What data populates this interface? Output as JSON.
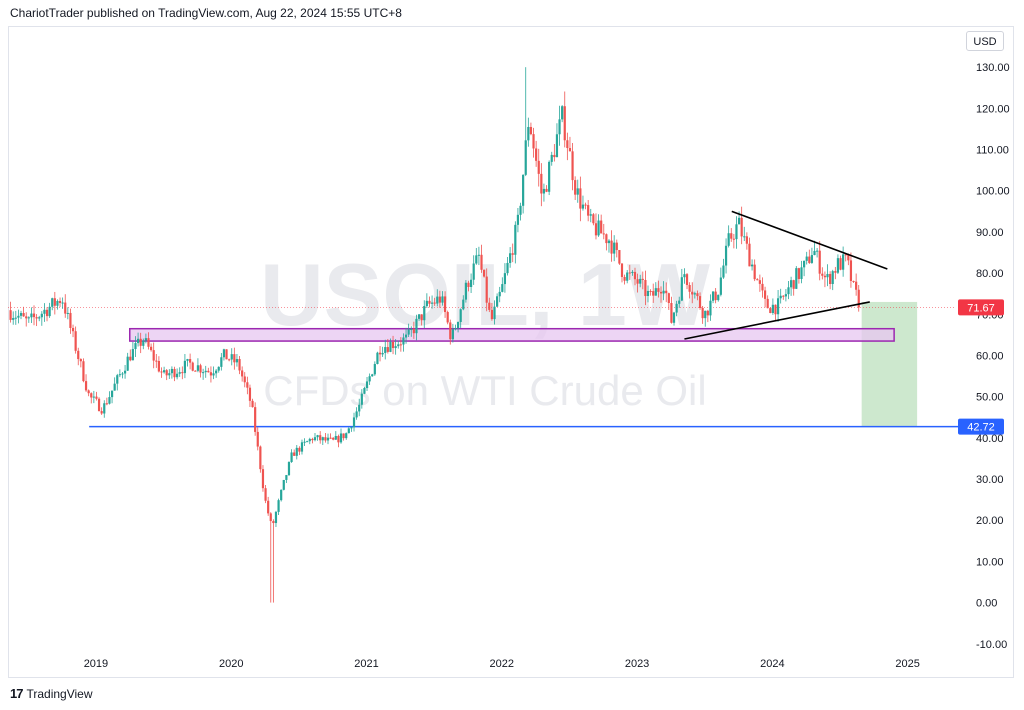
{
  "header": {
    "publisher_line": "ChariotTrader published on TradingView.com, Aug 22, 2024 15:55 UTC+8"
  },
  "footer": {
    "brand": "TradingView",
    "logo_glyph": "17"
  },
  "toolbar": {
    "currency": "USD"
  },
  "watermark": {
    "symbol": "USOIL, 1W",
    "description": "CFDs on WTI Crude Oil"
  },
  "colors": {
    "up": "#26a69a",
    "down": "#ef5350",
    "zone_fill": "#e7c7f0",
    "zone_stroke": "#9c27b0",
    "support_line": "#2962ff",
    "target_fill": "#c8e6c9",
    "price_label": "#f23645"
  },
  "chart_data": {
    "type": "candlestick",
    "title": "",
    "xlabel": "",
    "ylabel": "",
    "x_ticks": [
      "2019",
      "2020",
      "2021",
      "2022",
      "2023",
      "2024",
      "2025"
    ],
    "y_ticks": [
      "130.00",
      "120.00",
      "110.00",
      "100.00",
      "90.00",
      "80.00",
      "70.00",
      "60.00",
      "50.00",
      "40.00",
      "30.00",
      "20.00",
      "10.00",
      "0.00",
      "-10.00"
    ],
    "ylim": [
      -12,
      140
    ],
    "xlim": [
      2018.35,
      2025.35
    ],
    "grid": false,
    "price_path": [
      [
        2018.35,
        71
      ],
      [
        2018.5,
        68
      ],
      [
        2018.75,
        74
      ],
      [
        2018.95,
        50
      ],
      [
        2019.05,
        47
      ],
      [
        2019.25,
        60
      ],
      [
        2019.35,
        64
      ],
      [
        2019.5,
        55
      ],
      [
        2019.7,
        58
      ],
      [
        2019.85,
        56
      ],
      [
        2019.95,
        60
      ],
      [
        2020.05,
        58
      ],
      [
        2020.15,
        48
      ],
      [
        2020.25,
        25
      ],
      [
        2020.3,
        18
      ],
      [
        2020.38,
        28
      ],
      [
        2020.45,
        36
      ],
      [
        2020.6,
        40
      ],
      [
        2020.75,
        39
      ],
      [
        2020.85,
        41
      ],
      [
        2020.95,
        48
      ],
      [
        2021.1,
        62
      ],
      [
        2021.3,
        64
      ],
      [
        2021.45,
        72
      ],
      [
        2021.55,
        74
      ],
      [
        2021.63,
        64
      ],
      [
        2021.75,
        78
      ],
      [
        2021.83,
        84
      ],
      [
        2021.92,
        68
      ],
      [
        2022.0,
        76
      ],
      [
        2022.12,
        92
      ],
      [
        2022.2,
        118
      ],
      [
        2022.3,
        98
      ],
      [
        2022.4,
        112
      ],
      [
        2022.45,
        118
      ],
      [
        2022.55,
        100
      ],
      [
        2022.65,
        92
      ],
      [
        2022.8,
        88
      ],
      [
        2022.9,
        80
      ],
      [
        2023.0,
        78
      ],
      [
        2023.1,
        74
      ],
      [
        2023.2,
        78
      ],
      [
        2023.25,
        68
      ],
      [
        2023.35,
        80
      ],
      [
        2023.5,
        70
      ],
      [
        2023.6,
        76
      ],
      [
        2023.68,
        88
      ],
      [
        2023.75,
        92
      ],
      [
        2023.85,
        82
      ],
      [
        2023.95,
        72
      ],
      [
        2024.05,
        72
      ],
      [
        2024.15,
        78
      ],
      [
        2024.25,
        82
      ],
      [
        2024.3,
        86
      ],
      [
        2024.4,
        78
      ],
      [
        2024.48,
        82
      ],
      [
        2024.55,
        83
      ],
      [
        2024.6,
        76
      ],
      [
        2024.65,
        72
      ]
    ],
    "last_price": 71.67,
    "last_price_label": "71.67",
    "annotations": {
      "resistance_zone": {
        "x_start": 2019.25,
        "x_end": 2024.9,
        "y_low": 63.5,
        "y_high": 66.5
      },
      "support_line": {
        "y": 42.72,
        "label": "42.72",
        "x_start": 2018.95
      },
      "descending_trendline": {
        "x1": 2023.7,
        "y1": 95,
        "x2": 2024.85,
        "y2": 81
      },
      "ascending_trendline": {
        "x1": 2023.35,
        "y1": 64,
        "x2": 2024.72,
        "y2": 73
      },
      "target_box": {
        "x_start": 2024.66,
        "x_end": 2025.07,
        "y_low": 42.72,
        "y_high": 73
      }
    }
  }
}
